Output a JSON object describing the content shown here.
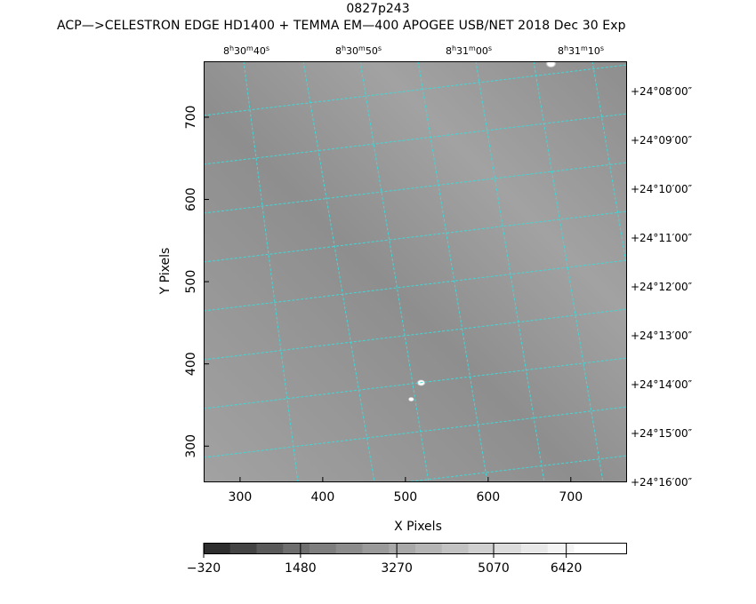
{
  "header": {
    "object": "0827p243",
    "subtitle": "ACP—>CELESTRON EDGE HD1400 + TEMMA EM—400 APOGEE USB/NET   2018 Dec 30    Exp"
  },
  "chart_data": {
    "type": "heatmap",
    "title": "0827p243",
    "xlabel": "X Pixels",
    "ylabel": "Y Pixels",
    "xlim": [
      256,
      768
    ],
    "ylim": [
      256,
      768
    ],
    "x_ticks": [
      300,
      400,
      500,
      600,
      700
    ],
    "y_ticks": [
      300,
      400,
      500,
      600,
      700
    ],
    "ra_ticks": [
      {
        "h": "8",
        "m": "30",
        "s": "40"
      },
      {
        "h": "8",
        "m": "30",
        "s": "50"
      },
      {
        "h": "8",
        "m": "31",
        "s": "00"
      },
      {
        "h": "8",
        "m": "31",
        "s": "10"
      }
    ],
    "dec_ticks": [
      "+24°08′00″",
      "+24°09′00″",
      "+24°10′00″",
      "+24°11′00″",
      "+24°12′00″",
      "+24°13′00″",
      "+24°14′00″",
      "+24°15′00″",
      "+24°16′00″"
    ],
    "colorbar": {
      "range": [
        -320,
        7550
      ],
      "tick_labels": [
        "−320",
        "1480",
        "3270",
        "5070",
        "6420"
      ],
      "tick_values": [
        -320,
        1480,
        3270,
        5070,
        6420
      ],
      "colors": [
        "#2e2e2e",
        "#444444",
        "#5a5a5a",
        "#6e6e6e",
        "#7e7e7e",
        "#8c8c8c",
        "#9a9a9a",
        "#a8a8a8",
        "#b5b5b5",
        "#c2c2c2",
        "#cfcfcf",
        "#dcdcdc",
        "#e8e8e8",
        "#f4f4f4",
        "#ffffff",
        "#ffffff"
      ]
    },
    "stars": [
      {
        "x": 676,
        "y": 765
      },
      {
        "x": 519,
        "y": 377
      },
      {
        "x": 507,
        "y": 357
      }
    ],
    "grid": true,
    "grid_color": "#3fd8d8",
    "image_colors": {
      "light": "#a2a2a2",
      "dark": "#8e8e8e"
    }
  }
}
